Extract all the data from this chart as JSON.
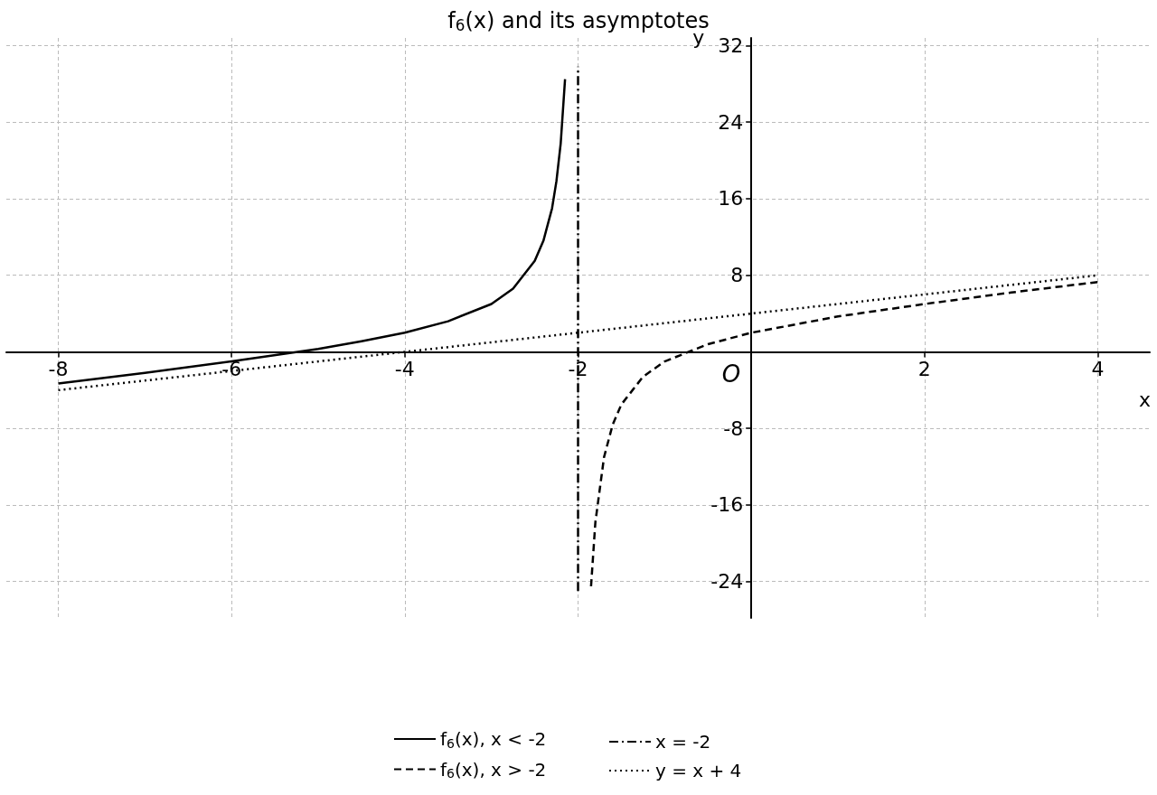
{
  "chart_data": {
    "type": "line",
    "title": "f$_{6}$(x) and its asymptotes",
    "xlabel": "x",
    "ylabel": "y",
    "annotations": [
      "O"
    ],
    "xlim": [
      -8.6,
      4.6
    ],
    "ylim": [
      -27.8,
      32.8
    ],
    "xticks": [
      -8,
      -6,
      -4,
      -2,
      2,
      4
    ],
    "yticks": [
      -24,
      -16,
      -8,
      8,
      16,
      24,
      32
    ],
    "grid": true,
    "legend": "bottom",
    "marker": "none",
    "series": [
      {
        "name": "f$_{6}$(x), x < -2",
        "color": "#000000",
        "line_style": "solid",
        "x": [
          -8,
          -7,
          -6,
          -5,
          -4.5,
          -4,
          -3.5,
          -3,
          -2.75,
          -2.5,
          -2.4,
          -2.3,
          -2.25,
          -2.2,
          -2.15
        ],
        "values": [
          -3.3,
          -2.2,
          -1,
          0.3,
          1.1,
          2,
          3.2,
          5,
          6.6,
          9.5,
          11.6,
          15,
          17.8,
          21.8,
          28.5
        ]
      },
      {
        "name": "f$_{6}$(x), x > -2",
        "color": "#000000",
        "line_style": "dashed",
        "x": [
          -1.85,
          -1.8,
          -1.7,
          -1.6,
          -1.5,
          -1.25,
          -1,
          -0.5,
          0,
          1,
          2,
          3,
          4
        ],
        "values": [
          -24.5,
          -17.8,
          -11,
          -7.6,
          -5.5,
          -2.6,
          -1,
          0.8,
          2,
          3.7,
          5,
          6.2,
          7.3
        ]
      },
      {
        "name": "x = -2",
        "color": "#000000",
        "line_style": "dashdot",
        "x": [
          -2,
          -2
        ],
        "values": [
          -25,
          29.8
        ]
      },
      {
        "name": "y = x + 4",
        "color": "#000000",
        "line_style": "dotted",
        "x": [
          -8,
          4
        ],
        "values": [
          -4,
          8
        ]
      }
    ]
  }
}
